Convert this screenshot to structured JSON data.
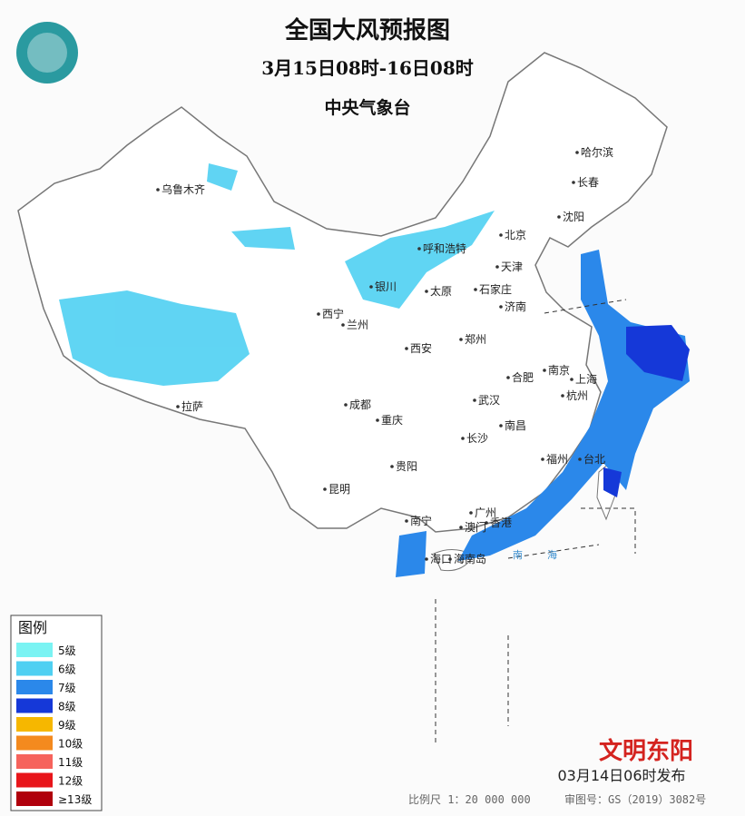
{
  "header": {
    "title": "全国大风预报图",
    "period": "3月15日08时-16日08时",
    "issuer": "中央气象台"
  },
  "legend": {
    "title": "图例",
    "items": [
      {
        "label": "5级",
        "color": "#7af3f3"
      },
      {
        "label": "6级",
        "color": "#4fd0f2"
      },
      {
        "label": "7级",
        "color": "#2b88ea"
      },
      {
        "label": "8级",
        "color": "#1538d8"
      },
      {
        "label": "9级",
        "color": "#f6b700"
      },
      {
        "label": "10级",
        "color": "#f48a1e"
      },
      {
        "label": "11级",
        "color": "#f6635c"
      },
      {
        "label": "12级",
        "color": "#e8151a"
      },
      {
        "label": "≥13级",
        "color": "#b0000c"
      }
    ]
  },
  "cities": [
    "乌鲁木齐",
    "哈尔滨",
    "长春",
    "沈阳",
    "北京",
    "天津",
    "呼和浩特",
    "银川",
    "太原",
    "石家庄",
    "济南",
    "西宁",
    "兰州",
    "郑州",
    "西安",
    "合肥",
    "南京",
    "上海",
    "杭州",
    "成都",
    "武汉",
    "重庆",
    "拉萨",
    "南昌",
    "长沙",
    "贵阳",
    "福州",
    "台北",
    "昆明",
    "广州",
    "南宁",
    "澳门",
    "香港",
    "海口",
    "海南岛"
  ],
  "seas": [
    "南",
    "海"
  ],
  "footer": {
    "issued": "03月14日06时发布",
    "scale": "比例尺 1：20 000 000",
    "approval": "审图号：GS（2019）3082号",
    "watermark": "文明东阳"
  }
}
